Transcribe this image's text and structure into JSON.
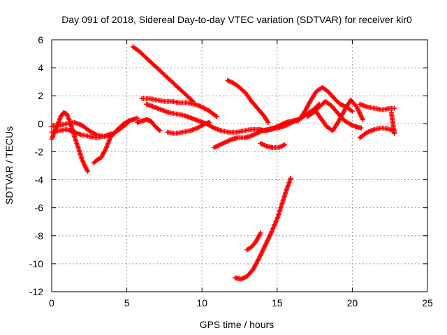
{
  "chart_data": {
    "type": "scatter",
    "title": "Day 091 of 2018, Sidereal Day-to-day VTEC variation (SDTVAR) for receiver kir0",
    "xlabel": "GPS time / hours",
    "ylabel": "SDTVAR / TECUs",
    "xlim": [
      0,
      25
    ],
    "ylim": [
      -12,
      6
    ],
    "xticks": [
      0,
      5,
      10,
      15,
      20,
      25
    ],
    "yticks": [
      -12,
      -10,
      -8,
      -6,
      -4,
      -2,
      0,
      2,
      4,
      6
    ],
    "xtick_labels": [
      "0",
      "5",
      "10",
      "15",
      "20",
      "25"
    ],
    "ytick_labels": [
      "-12",
      "-10",
      "-8",
      "-6",
      "-4",
      "-2",
      "0",
      "2",
      "4",
      "6"
    ],
    "grid": true,
    "marker": "+",
    "color": "#ff0000",
    "series": [
      {
        "name": "s1",
        "x": [
          0,
          0.3,
          0.6,
          0.8,
          1.0,
          1.2,
          1.4,
          1.6,
          1.8,
          2.0,
          2.2,
          2.4
        ],
        "y": [
          -1.1,
          -0.3,
          0.5,
          0.8,
          0.7,
          0.2,
          -0.5,
          -1.2,
          -1.8,
          -2.5,
          -3.0,
          -3.4
        ]
      },
      {
        "name": "s2",
        "x": [
          0,
          0.5,
          1.0,
          1.5,
          2.0,
          2.5,
          3.0,
          3.5,
          4.0,
          4.5,
          5.0
        ],
        "y": [
          -0.2,
          -0.1,
          0.0,
          0.1,
          -0.1,
          -0.5,
          -0.8,
          -0.9,
          -0.8,
          -0.4,
          0.0
        ]
      },
      {
        "name": "s3",
        "x": [
          0,
          0.5,
          1.0,
          1.5,
          2.0,
          2.5,
          3.0,
          3.5,
          4.0
        ],
        "y": [
          -0.6,
          -0.5,
          -0.4,
          -0.6,
          -0.8,
          -0.9,
          -1.0,
          -0.9,
          -0.7
        ]
      },
      {
        "name": "s4",
        "x": [
          2.8,
          3.0,
          3.3,
          3.6,
          3.9,
          4.2,
          4.5,
          4.8,
          5.1,
          5.4,
          5.7
        ],
        "y": [
          -2.8,
          -2.6,
          -2.4,
          -1.8,
          -1.0,
          -0.6,
          -0.3,
          0.0,
          0.2,
          0.3,
          0.4
        ]
      },
      {
        "name": "s5",
        "x": [
          5.7,
          6.0,
          6.3,
          6.6,
          6.9,
          7.2
        ],
        "y": [
          0.1,
          0.2,
          0.3,
          0.2,
          -0.2,
          -0.5
        ]
      },
      {
        "name": "s6",
        "x": [
          5.4,
          5.8,
          6.2,
          6.6,
          7.0,
          7.4,
          7.8,
          8.2,
          8.6,
          9.0,
          9.4
        ],
        "y": [
          5.5,
          5.2,
          4.8,
          4.4,
          4.0,
          3.6,
          3.2,
          2.8,
          2.4,
          2.0,
          1.6
        ]
      },
      {
        "name": "s7",
        "x": [
          6.0,
          6.5,
          7.0,
          7.5,
          8.0,
          8.5,
          9.0,
          9.5,
          10.0,
          10.5,
          11.0
        ],
        "y": [
          1.8,
          1.8,
          1.7,
          1.6,
          1.6,
          1.5,
          1.5,
          1.4,
          1.2,
          0.9,
          0.5
        ]
      },
      {
        "name": "s8",
        "x": [
          6.3,
          6.8,
          7.3,
          7.8,
          8.3,
          8.8,
          9.3,
          9.8,
          10.3,
          10.8,
          11.3,
          11.8,
          12.3,
          12.8,
          13.3,
          13.7
        ],
        "y": [
          1.4,
          1.2,
          1.0,
          0.8,
          0.7,
          0.6,
          0.4,
          0.2,
          0.0,
          -0.3,
          -0.5,
          -0.6,
          -0.6,
          -0.5,
          -0.4,
          -0.4
        ]
      },
      {
        "name": "s9",
        "x": [
          7.7,
          8.2,
          8.7,
          9.2,
          9.7,
          10.2,
          10.5
        ],
        "y": [
          -0.6,
          -0.7,
          -0.6,
          -0.5,
          -0.3,
          0.0,
          0.1
        ]
      },
      {
        "name": "s10",
        "x": [
          10.8,
          11.2,
          11.6,
          12.0,
          12.4,
          12.8,
          13.2,
          13.6,
          14.0,
          14.4,
          14.8,
          15.2,
          15.6,
          16.0,
          16.4
        ],
        "y": [
          -1.7,
          -1.5,
          -1.3,
          -1.1,
          -1.0,
          -1.0,
          -0.9,
          -0.7,
          -0.5,
          -0.4,
          -0.3,
          -0.1,
          0.1,
          0.2,
          0.3
        ]
      },
      {
        "name": "s11",
        "x": [
          11.7,
          12.1,
          12.5,
          12.9,
          13.3,
          13.7,
          14.1,
          14.4
        ],
        "y": [
          3.1,
          2.9,
          2.6,
          2.2,
          1.6,
          1.1,
          0.6,
          0.1
        ]
      },
      {
        "name": "s12",
        "x": [
          13.8,
          14.2,
          14.6,
          15.0,
          15.4,
          15.8,
          16.2,
          16.6,
          17.0,
          17.4,
          17.8
        ],
        "y": [
          -0.4,
          -0.5,
          -0.4,
          -0.3,
          -0.2,
          0.0,
          0.2,
          0.4,
          0.7,
          1.0,
          1.4
        ]
      },
      {
        "name": "s13",
        "x": [
          13.9,
          14.3,
          14.7,
          15.1,
          15.5
        ],
        "y": [
          -1.4,
          -1.6,
          -1.7,
          -1.7,
          -1.5
        ]
      },
      {
        "name": "s14",
        "x": [
          12.2,
          12.6,
          13.0,
          13.4,
          13.8,
          14.2,
          14.6,
          15.0,
          15.3,
          15.6,
          15.9
        ],
        "y": [
          -11.0,
          -11.1,
          -10.9,
          -10.4,
          -9.6,
          -8.7,
          -7.8,
          -6.8,
          -5.8,
          -4.8,
          -3.9
        ]
      },
      {
        "name": "s15",
        "x": [
          13.0,
          13.3,
          13.6,
          13.9
        ],
        "y": [
          -9.0,
          -8.8,
          -8.4,
          -7.8
        ]
      },
      {
        "name": "s16",
        "x": [
          16.4,
          16.8,
          17.2,
          17.6,
          18.0,
          18.4,
          18.8,
          19.2,
          19.6,
          20.0
        ],
        "y": [
          0.2,
          0.8,
          1.6,
          2.3,
          2.6,
          2.3,
          1.8,
          1.4,
          1.2,
          0.9
        ]
      },
      {
        "name": "s17",
        "x": [
          17.0,
          17.4,
          17.8,
          18.2,
          18.6,
          19.0,
          19.4,
          19.8,
          20.2,
          20.6
        ],
        "y": [
          0.5,
          0.8,
          1.2,
          1.6,
          1.3,
          0.8,
          0.3,
          0.0,
          -0.2,
          -0.3
        ]
      },
      {
        "name": "s18",
        "x": [
          17.5,
          17.9,
          18.3,
          18.7,
          19.1,
          19.5,
          19.9,
          20.3,
          20.7
        ],
        "y": [
          1.0,
          0.4,
          -0.2,
          -0.5,
          0.2,
          1.0,
          1.7,
          1.2,
          0.3
        ]
      },
      {
        "name": "s19",
        "x": [
          20.5,
          21.0,
          21.5,
          22.0,
          22.5,
          22.8
        ],
        "y": [
          1.4,
          1.2,
          1.1,
          1.0,
          1.1,
          1.1
        ]
      },
      {
        "name": "s20",
        "x": [
          20.5,
          21.0,
          21.5,
          22.0,
          22.5,
          22.8
        ],
        "y": [
          -1.0,
          -0.6,
          -0.4,
          -0.3,
          -0.4,
          -0.5
        ]
      },
      {
        "name": "s21",
        "x": [
          22.6,
          22.7,
          22.8
        ],
        "y": [
          0.8,
          0.0,
          -0.7
        ]
      }
    ]
  }
}
